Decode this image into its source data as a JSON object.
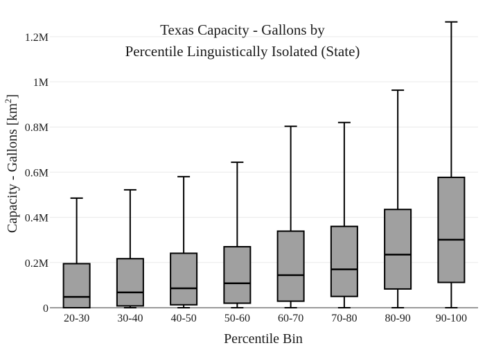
{
  "chart_data": {
    "type": "box",
    "title_lines": [
      "Texas Capacity - Gallons by",
      "Percentile Linguistically Isolated (State)"
    ],
    "xlabel": "Percentile Bin",
    "ylabel": "Capacity - Gallons  [km",
    "ylabel_sup": "2",
    "ylabel_close": "]",
    "ylim": [
      0,
      1270000
    ],
    "yticks": [
      0,
      200000,
      400000,
      600000,
      800000,
      1000000,
      1200000
    ],
    "ytick_labels": [
      "0",
      "0.2M",
      "0.4M",
      "0.6M",
      "0.8M",
      "1M",
      "1.2M"
    ],
    "grid": true,
    "box_color": "#a0a0a0",
    "categories": [
      "20-30",
      "30-40",
      "40-50",
      "50-60",
      "60-70",
      "70-80",
      "80-90",
      "90-100"
    ],
    "boxes": [
      {
        "min": 0,
        "q1": 0,
        "median": 48000,
        "q3": 195000,
        "max": 485000
      },
      {
        "min": 0,
        "q1": 8000,
        "median": 68000,
        "q3": 217000,
        "max": 522000
      },
      {
        "min": 0,
        "q1": 13000,
        "median": 86000,
        "q3": 241000,
        "max": 580000
      },
      {
        "min": 0,
        "q1": 20000,
        "median": 108000,
        "q3": 270000,
        "max": 644000
      },
      {
        "min": 0,
        "q1": 29000,
        "median": 144000,
        "q3": 339000,
        "max": 803000
      },
      {
        "min": 0,
        "q1": 50000,
        "median": 170000,
        "q3": 360000,
        "max": 820000
      },
      {
        "min": 0,
        "q1": 83000,
        "median": 235000,
        "q3": 435000,
        "max": 963000
      },
      {
        "min": 0,
        "q1": 112000,
        "median": 301000,
        "q3": 577000,
        "max": 1265000
      }
    ]
  }
}
